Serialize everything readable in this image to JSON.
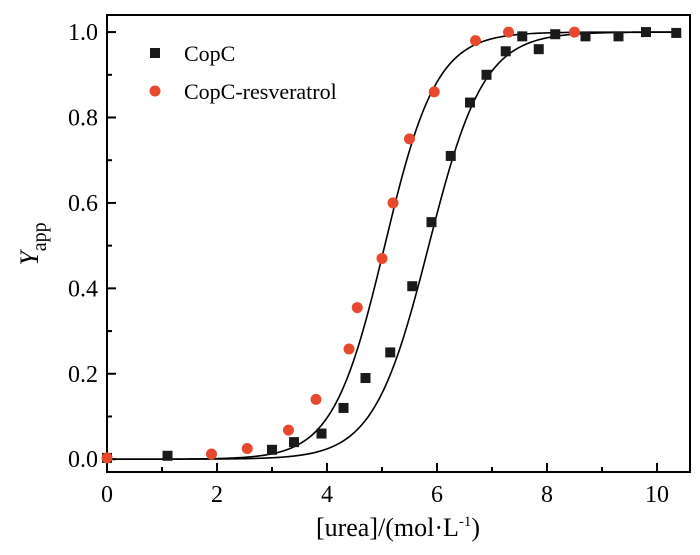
{
  "chart_data": {
    "type": "scatter",
    "xlabel": "[urea]/(mol·L",
    "xlabel_sup": "-1",
    "xlabel_close": ")",
    "ylabel": "Y",
    "ylabel_sub": "app",
    "xlim": [
      0,
      10.6
    ],
    "ylim": [
      -0.03,
      1.04
    ],
    "xticks": [
      0,
      2,
      4,
      6,
      8,
      10
    ],
    "xtick_labels": [
      "0",
      "2",
      "4",
      "6",
      "8",
      "10"
    ],
    "yticks": [
      0.0,
      0.2,
      0.4,
      0.6,
      0.8,
      1.0
    ],
    "ytick_labels": [
      "0.0",
      "0.2",
      "0.4",
      "0.6",
      "0.8",
      "1.0"
    ],
    "legend_position": "top-left",
    "grid": false,
    "series": [
      {
        "name": "CopC",
        "marker": "square",
        "color": "#1a1a1a",
        "points": [
          [
            0.0,
            0.003
          ],
          [
            1.1,
            0.008
          ],
          [
            3.0,
            0.022
          ],
          [
            3.4,
            0.04
          ],
          [
            3.9,
            0.06
          ],
          [
            4.3,
            0.12
          ],
          [
            4.7,
            0.19
          ],
          [
            5.15,
            0.25
          ],
          [
            5.55,
            0.405
          ],
          [
            5.9,
            0.555
          ],
          [
            6.25,
            0.71
          ],
          [
            6.6,
            0.835
          ],
          [
            6.9,
            0.9
          ],
          [
            7.25,
            0.955
          ],
          [
            7.55,
            0.99
          ],
          [
            7.85,
            0.96
          ],
          [
            8.15,
            0.995
          ],
          [
            8.7,
            0.99
          ],
          [
            9.3,
            0.99
          ],
          [
            9.8,
            1.0
          ],
          [
            10.35,
            0.998
          ]
        ],
        "fit_midpoint": 5.85,
        "fit_slope": 0.5
      },
      {
        "name": "CopC-resveratrol",
        "marker": "circle",
        "color": "#e8492e",
        "points": [
          [
            0.0,
            0.003
          ],
          [
            1.9,
            0.012
          ],
          [
            2.55,
            0.025
          ],
          [
            3.3,
            0.068
          ],
          [
            3.8,
            0.14
          ],
          [
            4.4,
            0.258
          ],
          [
            4.55,
            0.355
          ],
          [
            5.0,
            0.47
          ],
          [
            5.2,
            0.6
          ],
          [
            5.5,
            0.75
          ],
          [
            5.95,
            0.86
          ],
          [
            6.7,
            0.98
          ],
          [
            7.3,
            1.0
          ],
          [
            8.5,
            1.0
          ]
        ],
        "fit_midpoint": 5.05,
        "fit_slope": 0.47
      }
    ]
  }
}
